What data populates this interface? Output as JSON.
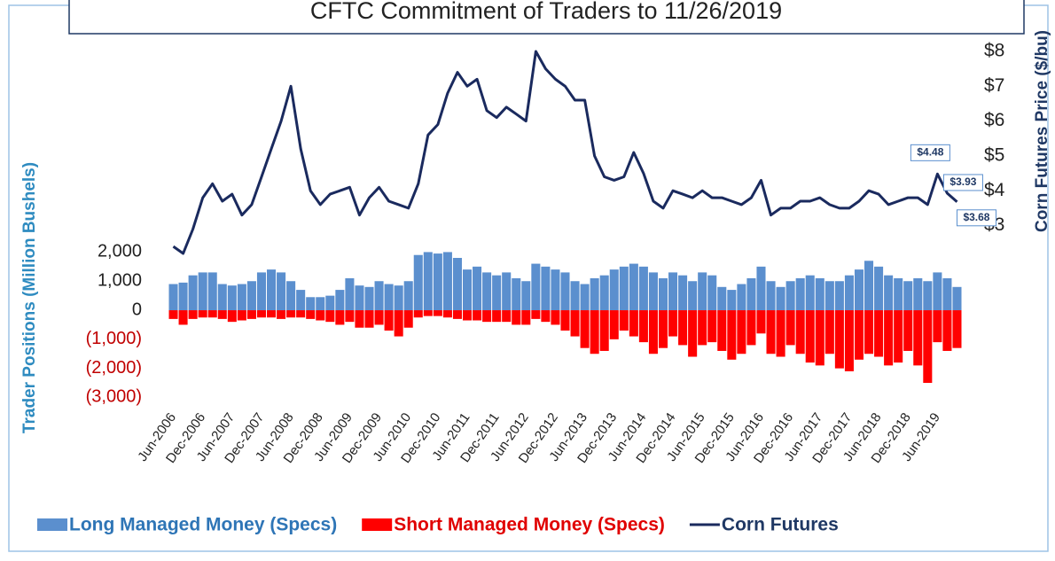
{
  "chart_data": {
    "type": "bar-line",
    "title": "CFTC Commitment of Traders to 11/26/2019",
    "y_label": "Trader Positions (Million Bushels)",
    "y2_label": "Corn Futures Price ($/bu)",
    "categories": [
      "Jun-2006",
      null,
      null,
      "Dec-2006",
      null,
      null,
      "Jun-2007",
      null,
      null,
      "Dec-2007",
      null,
      null,
      "Jun-2008",
      null,
      null,
      "Dec-2008",
      null,
      null,
      "Jun-2009",
      null,
      null,
      "Dec-2009",
      null,
      null,
      "Jun-2010",
      null,
      null,
      "Dec-2010",
      null,
      null,
      "Jun-2011",
      null,
      null,
      "Dec-2011",
      null,
      null,
      "Jun-2012",
      null,
      null,
      "Dec-2012",
      null,
      null,
      "Jun-2013",
      null,
      null,
      "Dec-2013",
      null,
      null,
      "Jun-2014",
      null,
      null,
      "Dec-2014",
      null,
      null,
      "Jun-2015",
      null,
      null,
      "Dec-2015",
      null,
      null,
      "Jun-2016",
      null,
      null,
      "Dec-2016",
      null,
      null,
      "Jun-2017",
      null,
      null,
      "Dec-2017",
      null,
      null,
      "Jun-2018",
      null,
      null,
      "Dec-2018",
      null,
      null,
      "Jun-2019",
      null,
      null
    ],
    "series": [
      {
        "name": "Long Managed Money (Specs)",
        "color": "#5b8fce",
        "kind": "bar",
        "values": [
          900,
          950,
          1200,
          1300,
          1300,
          900,
          850,
          900,
          1000,
          1300,
          1400,
          1300,
          1000,
          700,
          450,
          450,
          500,
          700,
          1100,
          850,
          800,
          1000,
          900,
          850,
          1000,
          1900,
          2000,
          1950,
          2000,
          1800,
          1400,
          1500,
          1300,
          1200,
          1300,
          1100,
          1000,
          1600,
          1500,
          1400,
          1300,
          1000,
          900,
          1100,
          1200,
          1400,
          1500,
          1600,
          1500,
          1300,
          1100,
          1300,
          1200,
          1000,
          1300,
          1200,
          800,
          700,
          900,
          1100,
          1500,
          1000,
          800,
          1000,
          1100,
          1200,
          1100,
          1000,
          1000,
          1200,
          1400,
          1700,
          1500,
          1200,
          1100,
          1000,
          1100,
          1000,
          1300,
          1100,
          800
        ]
      },
      {
        "name": "Short Managed Money (Specs)",
        "color": "#ff0000",
        "kind": "bar",
        "values": [
          -300,
          -500,
          -300,
          -250,
          -250,
          -300,
          -400,
          -350,
          -300,
          -250,
          -250,
          -300,
          -250,
          -250,
          -300,
          -350,
          -400,
          -500,
          -400,
          -600,
          -600,
          -500,
          -700,
          -900,
          -600,
          -250,
          -200,
          -200,
          -250,
          -300,
          -350,
          -350,
          -400,
          -400,
          -400,
          -500,
          -500,
          -300,
          -400,
          -500,
          -700,
          -900,
          -1300,
          -1500,
          -1400,
          -1000,
          -700,
          -900,
          -1100,
          -1500,
          -1300,
          -900,
          -1200,
          -1600,
          -1200,
          -1100,
          -1400,
          -1700,
          -1500,
          -1200,
          -800,
          -1500,
          -1600,
          -1200,
          -1500,
          -1800,
          -1900,
          -1500,
          -2000,
          -2100,
          -1700,
          -1500,
          -1600,
          -1900,
          -1800,
          -1400,
          -1900,
          -2500,
          -1100,
          -1400,
          -1300
        ]
      },
      {
        "name": "Corn Futures",
        "color": "#1a2a5e",
        "kind": "line",
        "axis": "y2",
        "values": [
          2.4,
          2.2,
          2.9,
          3.8,
          4.2,
          3.7,
          3.9,
          3.3,
          3.6,
          4.4,
          5.2,
          6.0,
          7.0,
          5.2,
          4.0,
          3.6,
          3.9,
          4.0,
          4.1,
          3.3,
          3.8,
          4.1,
          3.7,
          3.6,
          3.5,
          4.2,
          5.6,
          5.9,
          6.8,
          7.4,
          7.0,
          7.2,
          6.3,
          6.1,
          6.4,
          6.2,
          6.0,
          8.0,
          7.5,
          7.2,
          7.0,
          6.6,
          6.6,
          5.0,
          4.4,
          4.3,
          4.4,
          5.1,
          4.5,
          3.7,
          3.5,
          4.0,
          3.9,
          3.8,
          4.0,
          3.8,
          3.8,
          3.7,
          3.6,
          3.8,
          4.3,
          3.3,
          3.5,
          3.5,
          3.7,
          3.7,
          3.8,
          3.6,
          3.5,
          3.5,
          3.7,
          4.0,
          3.9,
          3.6,
          3.7,
          3.8,
          3.8,
          3.6,
          4.48,
          3.93,
          3.68
        ]
      }
    ],
    "annotations": [
      "$4.48",
      "$3.93",
      "$3.68"
    ],
    "ylim": [
      -3200,
      9300
    ],
    "yticks": [
      {
        "value": -3000,
        "label": "(3,000)"
      },
      {
        "value": -2000,
        "label": "(2,000)"
      },
      {
        "value": -1000,
        "label": "(1,000)"
      },
      0,
      {
        "value": 1000,
        "label": "1,000"
      },
      {
        "value": 2000,
        "label": "2,000"
      }
    ],
    "y2lim": [
      -2.1,
      8.33
    ],
    "y2ticks": [
      {
        "value": 3,
        "label": "$3"
      },
      {
        "value": 4,
        "label": "$4"
      },
      {
        "value": 5,
        "label": "$5"
      },
      {
        "value": 6,
        "label": "$6"
      },
      {
        "value": 7,
        "label": "$7"
      },
      {
        "value": 8,
        "label": "$8"
      }
    ],
    "grid": false
  }
}
